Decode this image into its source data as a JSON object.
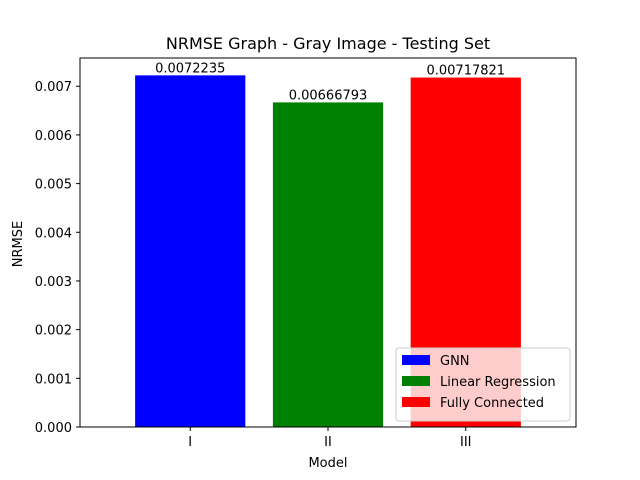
{
  "chart_data": {
    "type": "bar",
    "title": "NRMSE Graph - Gray Image - Testing Set",
    "xlabel": "Model",
    "ylabel": "NRMSE",
    "categories": [
      "I",
      "II",
      "III"
    ],
    "values": [
      0.0072235,
      0.00666793,
      0.00717821
    ],
    "value_labels": [
      "0.0072235",
      "0.00666793",
      "0.00717821"
    ],
    "colors": [
      "#0000ff",
      "#008000",
      "#ff0000"
    ],
    "ylim": [
      0,
      0.00758
    ],
    "yticks": [
      0,
      0.001,
      0.002,
      0.003,
      0.004,
      0.005,
      0.006,
      0.007
    ],
    "ytick_labels": [
      "0.000",
      "0.001",
      "0.002",
      "0.003",
      "0.004",
      "0.005",
      "0.006",
      "0.007"
    ],
    "grid": false,
    "legend_position": "lower-right",
    "legend": [
      {
        "label": "GNN",
        "color": "#0000ff"
      },
      {
        "label": "Linear Regression",
        "color": "#008000"
      },
      {
        "label": "Fully Connected",
        "color": "#ff0000"
      }
    ]
  }
}
